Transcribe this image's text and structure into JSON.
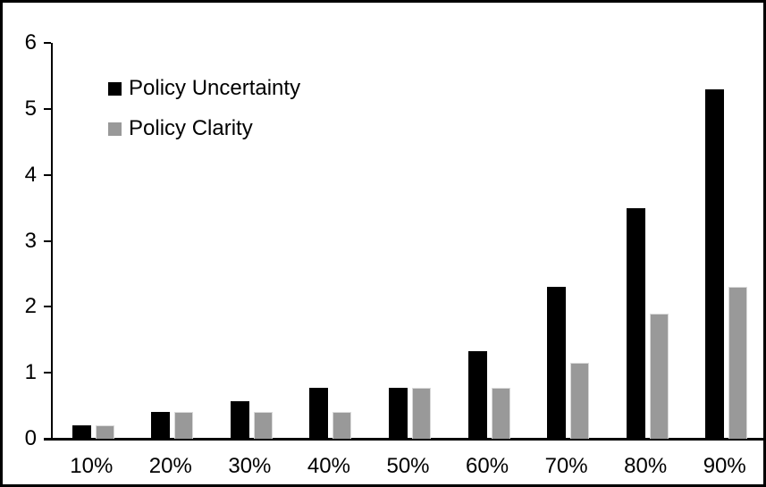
{
  "chart_data": {
    "type": "bar",
    "title": "",
    "xlabel": "",
    "ylabel": "",
    "categories": [
      "10%",
      "20%",
      "30%",
      "40%",
      "50%",
      "60%",
      "70%",
      "80%",
      "90%"
    ],
    "series": [
      {
        "name": "Policy Uncertainty",
        "color": "#000000",
        "values": [
          0.2,
          0.4,
          0.57,
          0.77,
          0.77,
          1.33,
          2.3,
          3.5,
          5.3
        ]
      },
      {
        "name": "Policy Clarity",
        "color": "#999999",
        "values": [
          0.2,
          0.4,
          0.4,
          0.4,
          0.77,
          0.77,
          1.15,
          1.9,
          2.3
        ]
      }
    ],
    "ylim": [
      0,
      6
    ],
    "yticks": [
      0,
      1,
      2,
      3,
      4,
      5,
      6
    ],
    "grid": false,
    "legend_position": "top-left"
  },
  "frame": {
    "background": "#ffffff",
    "border_color": "#000000",
    "axis_color": "#000000",
    "text_color": "#000000"
  }
}
